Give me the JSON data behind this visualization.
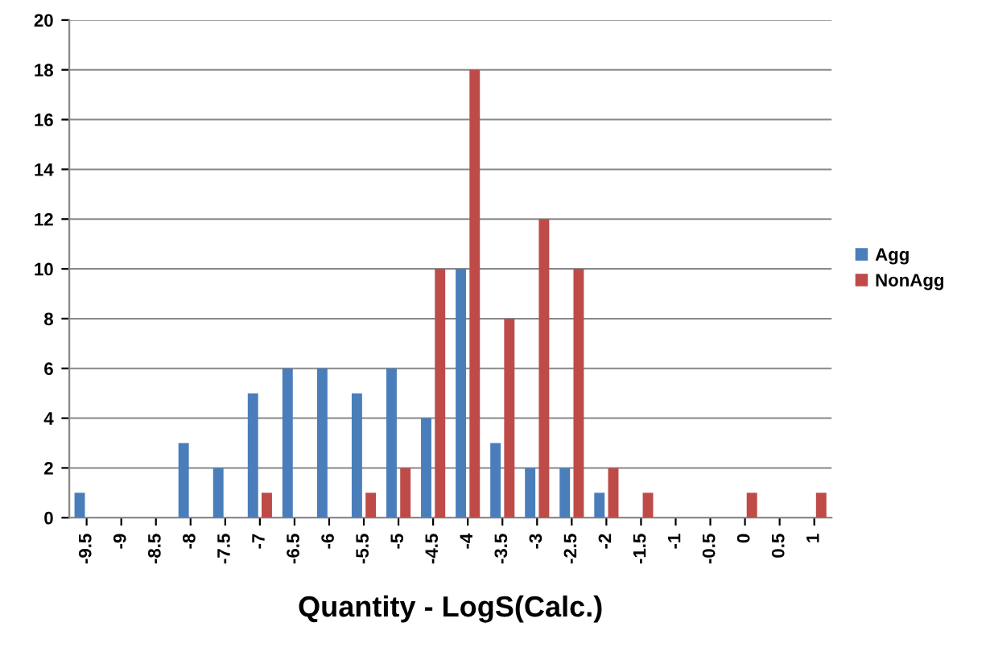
{
  "chart_data": {
    "type": "bar",
    "xlabel": "Quantity - LogS(Calc.)",
    "categories": [
      "-9.5",
      "-9",
      "-8.5",
      "-8",
      "-7.5",
      "-7",
      "-6.5",
      "-6",
      "-5.5",
      "-5",
      "-4.5",
      "-4",
      "-3.5",
      "-3",
      "-2.5",
      "-2",
      "-1.5",
      "-1",
      "-0.5",
      "0",
      "0.5",
      "1"
    ],
    "series": [
      {
        "name": "Agg",
        "color": "#4a7ebb",
        "values": [
          1,
          0,
          0,
          3,
          2,
          5,
          6,
          6,
          5,
          6,
          4,
          10,
          3,
          2,
          2,
          1,
          0,
          0,
          0,
          0,
          0,
          0
        ]
      },
      {
        "name": "NonAgg",
        "color": "#be4b48",
        "values": [
          0,
          0,
          0,
          0,
          0,
          1,
          0,
          0,
          1,
          2,
          10,
          18,
          8,
          12,
          10,
          2,
          1,
          0,
          0,
          1,
          0,
          1
        ]
      }
    ],
    "ylim": [
      0,
      20
    ],
    "yticks": [
      0,
      2,
      4,
      6,
      8,
      10,
      12,
      14,
      16,
      18,
      20
    ],
    "grid": "y",
    "legend": "right"
  }
}
